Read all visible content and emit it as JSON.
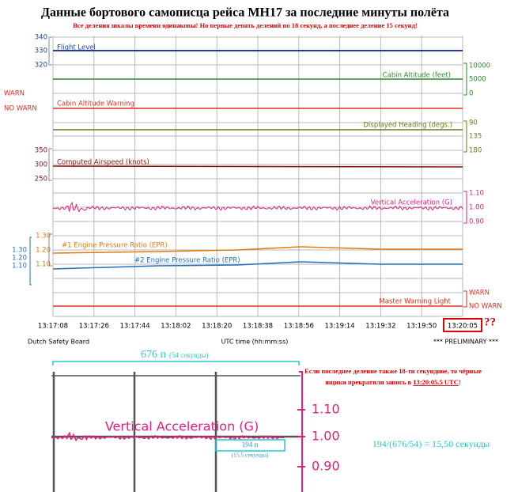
{
  "title": "Данные бортового самописца рейса МН17 за последние минуты полёта",
  "note": "Все деления шкалы времени одинаковы! Но первые девять делений по 18 секунд, а последнее деление 15 секунд!",
  "main": {
    "time_labels": [
      "13:17:08",
      "13:17:26",
      "13:17:44",
      "13:18:02",
      "13:18:20",
      "13:18:38",
      "13:18:56",
      "13:19:14",
      "13:19:32",
      "13:19:50",
      "13:20:05"
    ],
    "question": "??",
    "traces": {
      "flight_level": {
        "label": "Flight Level",
        "ticks": [
          "340",
          "330",
          "320"
        ]
      },
      "cabin_altitude": {
        "label": "Cabin Altitude (feet)",
        "ticks": [
          "10000",
          "5000",
          "0"
        ]
      },
      "cabin_warning": {
        "label": "Cabin Altitude Warning",
        "ticks": [
          "WARN",
          "NO WARN"
        ]
      },
      "heading": {
        "label": "Displayed Heading (degs.)",
        "ticks": [
          "90",
          "135",
          "180"
        ]
      },
      "airspeed": {
        "label": "Computed Airspeed (knots)",
        "ticks": [
          "350",
          "300",
          "250"
        ]
      },
      "vertical_acceleration": {
        "label": "Vertical Acceleration (G)",
        "ticks": [
          "1.10",
          "1.00",
          "0.90"
        ]
      },
      "epr1": {
        "label": "#1 Engine Pressure Ratio (EPR)",
        "ticks": [
          "1.30",
          "1.20",
          "1.10"
        ]
      },
      "epr2": {
        "label": "#2 Engine Pressure Ratio (EPR)",
        "ticks": [
          "1.30",
          "1.20",
          "1.10"
        ]
      },
      "master_warning": {
        "label": "Master Warning Light",
        "ticks": [
          "WARN",
          "NO WARN"
        ]
      }
    },
    "footer": {
      "left": "Dutch Safety Board",
      "center": "UTC time (hh:mm:ss)",
      "right": "*** PRELIMINARY ***"
    }
  },
  "inset": {
    "span_main": "676 п",
    "span_sub": "(54 секунды)",
    "label": "Vertical Acceleration (G)",
    "ticks": [
      "1.10",
      "1.00",
      "0.90"
    ],
    "box_main": "194 п",
    "box_sub": "(15,5 секунды)",
    "conclusion_line1": "Если последнее деление также 18-ти секундное, то чёрные",
    "conclusion_line2_a": "ящики прекратили  запись в ",
    "conclusion_line2_b": "13:20:05.5 UTC",
    "conclusion_line2_c": "!",
    "formula": "194/(676/54) = 15,50 секунды"
  }
}
